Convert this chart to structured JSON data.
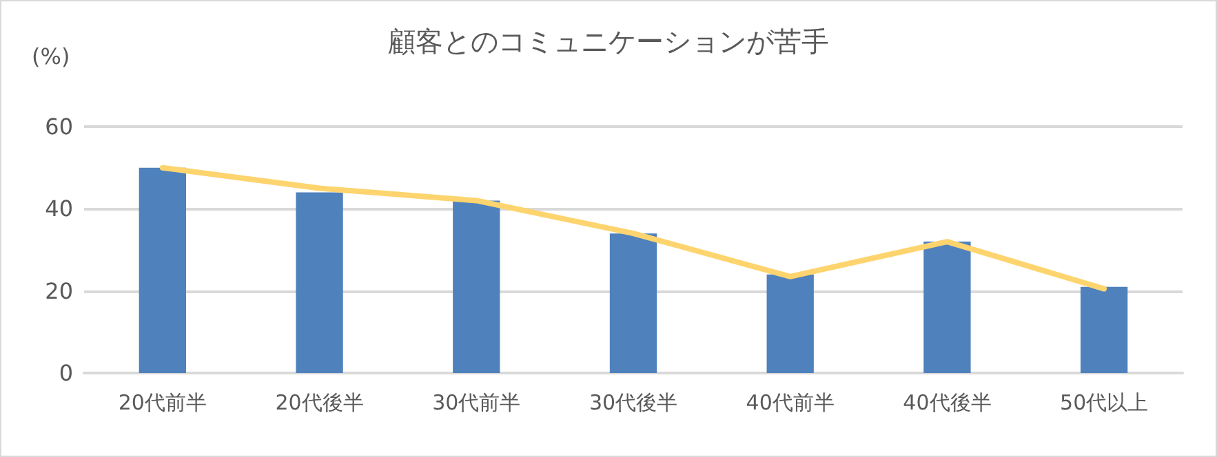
{
  "chart_data": {
    "type": "bar",
    "title": "顧客とのコミュニケーションが苦手",
    "ylabel": "(%)",
    "categories": [
      "20代前半",
      "20代後半",
      "30代前半",
      "30代後半",
      "40代前半",
      "40代後半",
      "50代以上"
    ],
    "series": [
      {
        "type": "bar",
        "color": "#4f81bd",
        "values": [
          50,
          44,
          42,
          34,
          24,
          32,
          21
        ]
      },
      {
        "type": "line",
        "color": "#fdd46e",
        "values": [
          50,
          45,
          42,
          34,
          23.5,
          32,
          20.5
        ],
        "marker": "none",
        "line_style": "solid"
      }
    ],
    "ylim": [
      0,
      60
    ],
    "yticks": [
      0,
      20,
      40,
      60
    ],
    "grid": "y"
  }
}
